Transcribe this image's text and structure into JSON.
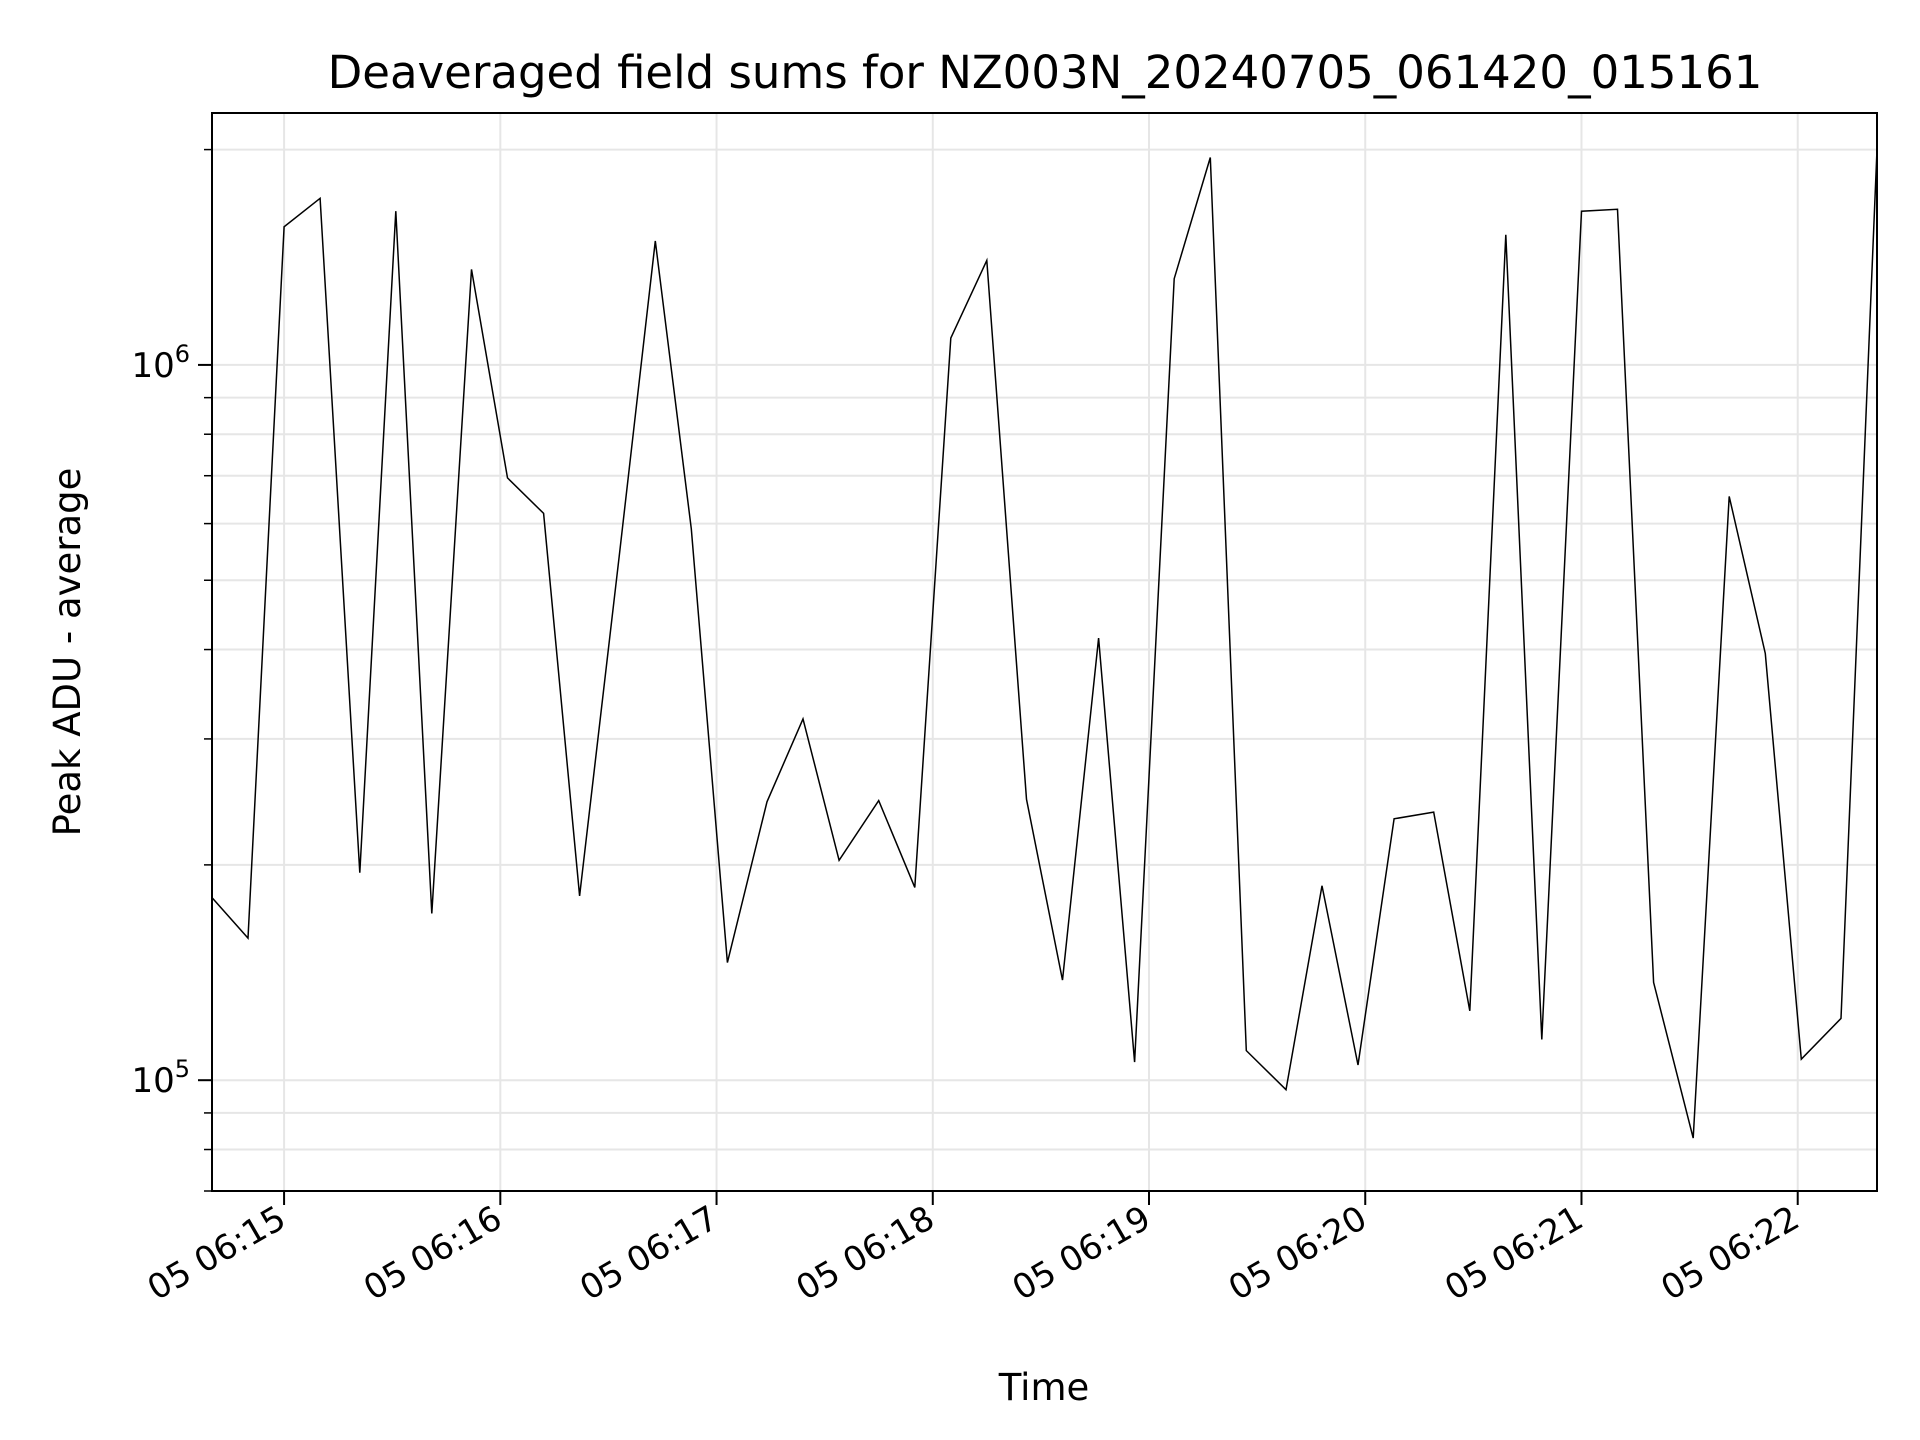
{
  "chart_data": {
    "type": "line",
    "title": "Deaveraged field sums for NZ003N_20240705_061420_015161",
    "xlabel": "Time",
    "ylabel": "Peak ADU - average",
    "yscale": "log",
    "grid": true,
    "x_ticks": [
      "05 06:15",
      "05 06:16",
      "05 06:17",
      "05 06:18",
      "05 06:19",
      "05 06:20",
      "05 06:21",
      "05 06:22"
    ],
    "y_ticks": [
      {
        "value": 100000,
        "base": "10",
        "exp": "5"
      },
      {
        "value": 1000000,
        "base": "10",
        "exp": "6"
      }
    ],
    "xlim": [
      "2024-07-05T06:14:40",
      "2024-07-05T06:22:22"
    ],
    "ylim": [
      70000,
      2250000
    ],
    "series": [
      {
        "color": "#000000",
        "x": [
          "2024-07-05T06:14:40",
          "2024-07-05T06:14:50",
          "2024-07-05T06:15:00",
          "2024-07-05T06:15:10",
          "2024-07-05T06:15:21",
          "2024-07-05T06:15:31",
          "2024-07-05T06:15:41",
          "2024-07-05T06:15:52",
          "2024-07-05T06:16:02",
          "2024-07-05T06:16:12",
          "2024-07-05T06:16:22",
          "2024-07-05T06:16:33",
          "2024-07-05T06:16:43",
          "2024-07-05T06:16:53",
          "2024-07-05T06:17:03",
          "2024-07-05T06:17:14",
          "2024-07-05T06:17:24",
          "2024-07-05T06:17:34",
          "2024-07-05T06:17:45",
          "2024-07-05T06:17:55",
          "2024-07-05T06:18:05",
          "2024-07-05T06:18:15",
          "2024-07-05T06:18:26",
          "2024-07-05T06:18:36",
          "2024-07-05T06:18:46",
          "2024-07-05T06:18:56",
          "2024-07-05T06:19:07",
          "2024-07-05T06:19:17",
          "2024-07-05T06:19:27",
          "2024-07-05T06:19:38",
          "2024-07-05T06:19:48",
          "2024-07-05T06:19:58",
          "2024-07-05T06:20:08",
          "2024-07-05T06:20:19",
          "2024-07-05T06:20:29",
          "2024-07-05T06:20:39",
          "2024-07-05T06:20:49",
          "2024-07-05T06:21:00",
          "2024-07-05T06:21:10",
          "2024-07-05T06:21:20",
          "2024-07-05T06:21:31",
          "2024-07-05T06:21:41",
          "2024-07-05T06:21:51",
          "2024-07-05T06:22:01",
          "2024-07-05T06:22:12",
          "2024-07-05T06:22:22"
        ],
        "y": [
          180000,
          158000,
          1560000,
          1710000,
          195000,
          1640000,
          171000,
          1360000,
          695000,
          620000,
          181000,
          540000,
          1490000,
          590000,
          146000,
          245000,
          320000,
          203000,
          246000,
          186000,
          1090000,
          1400000,
          247000,
          138000,
          415000,
          106000,
          1320000,
          1950000,
          110000,
          97000,
          187000,
          105000,
          232000,
          237000,
          125000,
          1520000,
          114000,
          1640000,
          1650000,
          137000,
          83000,
          655000,
          395000,
          107000,
          122000,
          2000000
        ]
      }
    ]
  }
}
